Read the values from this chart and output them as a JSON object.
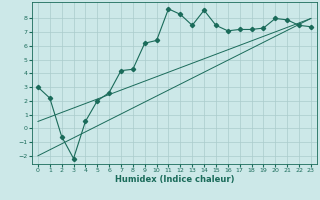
{
  "xlabel": "Humidex (Indice chaleur)",
  "background_color": "#cce8e8",
  "grid_color": "#aacccc",
  "line_color": "#1a6b5a",
  "xlim": [
    -0.5,
    23.5
  ],
  "ylim": [
    -2.6,
    9.2
  ],
  "yticks": [
    -2,
    -1,
    0,
    1,
    2,
    3,
    4,
    5,
    6,
    7,
    8
  ],
  "xticks": [
    0,
    1,
    2,
    3,
    4,
    5,
    6,
    7,
    8,
    9,
    10,
    11,
    12,
    13,
    14,
    15,
    16,
    17,
    18,
    19,
    20,
    21,
    22,
    23
  ],
  "curve_x": [
    0,
    1,
    2,
    3,
    4,
    5,
    6,
    7,
    8,
    9,
    10,
    11,
    12,
    13,
    14,
    15,
    16,
    17,
    18,
    19,
    20,
    21,
    22,
    23
  ],
  "curve_y": [
    3.0,
    2.2,
    -0.6,
    -2.2,
    0.5,
    2.0,
    2.6,
    4.2,
    4.3,
    6.2,
    6.4,
    8.7,
    8.3,
    7.5,
    8.6,
    7.5,
    7.1,
    7.2,
    7.2,
    7.3,
    8.0,
    7.9,
    7.5,
    7.4
  ],
  "line1_x": [
    0,
    23
  ],
  "line1_y": [
    -2.0,
    8.0
  ],
  "line2_x": [
    0,
    23
  ],
  "line2_y": [
    0.5,
    8.0
  ]
}
